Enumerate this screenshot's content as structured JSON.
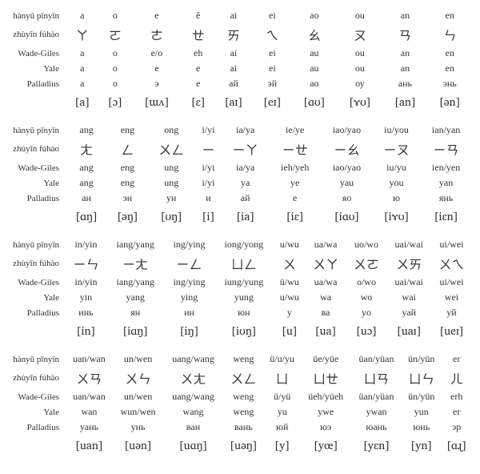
{
  "rowLabels": {
    "pinyin": "hànyǔ pīnyīn",
    "zhuyin": "zhùyīn fúhào",
    "wadegiles": "Wade-Giles",
    "yale": "Yale",
    "palladius": "Palladius"
  },
  "blocks": [
    {
      "cols": 10,
      "pinyin": [
        "a",
        "o",
        "e",
        "ê",
        "ai",
        "ei",
        "ao",
        "ou",
        "an",
        "en"
      ],
      "zhuyin": [
        "ㄚ",
        "ㄛ",
        "ㄜ",
        "ㄝ",
        "ㄞ",
        "ㄟ",
        "ㄠ",
        "ㄡ",
        "ㄢ",
        "ㄣ"
      ],
      "wadegiles": [
        "a",
        "o",
        "e/o",
        "eh",
        "ai",
        "ei",
        "au",
        "ou",
        "an",
        "en"
      ],
      "yale": [
        "a",
        "o",
        "e",
        "e",
        "ai",
        "ei",
        "au",
        "ou",
        "an",
        "en"
      ],
      "palladius": [
        "а",
        "о",
        "э",
        "е",
        "ай",
        "эй",
        "ао",
        "оу",
        "ань",
        "энь"
      ],
      "ipa": [
        "[a]",
        "[ɔ]",
        "[ɯʌ]",
        "[ɛ]",
        "[aɪ]",
        "[eɪ]",
        "[ɑʊ]",
        "[ɤʊ]",
        "[an]",
        "[ən]"
      ]
    },
    {
      "cols": 9,
      "pinyin": [
        "ang",
        "eng",
        "ong",
        "i/yi",
        "ia/ya",
        "ie/ye",
        "iao/yao",
        "iu/you",
        "ian/yan"
      ],
      "zhuyin": [
        "ㄤ",
        "ㄥ",
        "ㄨㄥ",
        "ㄧ",
        "ㄧㄚ",
        "ㄧㄝ",
        "ㄧㄠ",
        "ㄧㄡ",
        "ㄧㄢ"
      ],
      "wadegiles": [
        "ang",
        "eng",
        "ung",
        "i/yi",
        "ia/ya",
        "ieh/yeh",
        "iao/yao",
        "iu/yu",
        "ien/yen"
      ],
      "yale": [
        "ang",
        "eng",
        "ung",
        "i/yi",
        "ya",
        "ye",
        "yau",
        "you",
        "yan"
      ],
      "palladius": [
        "ан",
        "эн",
        "ун",
        "и",
        "ай",
        "е",
        "яо",
        "ю",
        "янь"
      ],
      "ipa": [
        "[ɑŋ]",
        "[əŋ]",
        "[ʊŋ]",
        "[i]",
        "[ia]",
        "[iɛ]",
        "[iɑʊ]",
        "[iɤʊ]",
        "[iɛn]"
      ]
    },
    {
      "cols": 9,
      "pinyin": [
        "in/yin",
        "iang/yang",
        "ing/ying",
        "iong/yong",
        "u/wu",
        "ua/wa",
        "uo/wo",
        "uai/wai",
        "ui/wei"
      ],
      "zhuyin": [
        "ㄧㄣ",
        "ㄧㄤ",
        "ㄧㄥ",
        "ㄩㄥ",
        "ㄨ",
        "ㄨㄚ",
        "ㄨㄛ",
        "ㄨㄞ",
        "ㄨㄟ"
      ],
      "wadegiles": [
        "in/yin",
        "iang/yang",
        "ing/ying",
        "iung/yung",
        "ü/wu",
        "ua/wa",
        "o/wo",
        "uai/wai",
        "ui/wei"
      ],
      "yale": [
        "yin",
        "yang",
        "ying",
        "yung",
        "u/wu",
        "wa",
        "wo",
        "wai",
        "wei"
      ],
      "palladius": [
        "инь",
        "ян",
        "ин",
        "юн",
        "у",
        "ва",
        "yo",
        "уай",
        "уй"
      ],
      "ipa": [
        "[in]",
        "[iɑŋ]",
        "[iŋ]",
        "[iʊŋ]",
        "[u]",
        "[ua]",
        "[uɔ]",
        "[uaɪ]",
        "[ueɪ]"
      ]
    },
    {
      "cols": 9,
      "pinyin": [
        "uan/wan",
        "un/wen",
        "uang/wang",
        "weng",
        "ü/u/yu",
        "üe/yüe",
        "üan/yüan",
        "ün/yün",
        "er"
      ],
      "zhuyin": [
        "ㄨㄢ",
        "ㄨㄣ",
        "ㄨㄤ",
        "ㄨㄥ",
        "ㄩ",
        "ㄩㄝ",
        "ㄩㄢ",
        "ㄩㄣ",
        "ㄦ"
      ],
      "wadegiles": [
        "uan/wan",
        "un/wen",
        "uang/wang",
        "weng",
        "ü/yü",
        "üeh/yüeh",
        "üan/yüan",
        "ün/yün",
        "erh"
      ],
      "yale": [
        "wan",
        "wun/wen",
        "wang",
        "weng",
        "yu",
        "ywe",
        "ywan",
        "yun",
        "er"
      ],
      "palladius": [
        "уань",
        "унь",
        "ван",
        "вань",
        "юй",
        "юэ",
        "юань",
        "юнь",
        "эр"
      ],
      "ipa": [
        "[uan]",
        "[uən]",
        "[uɑŋ]",
        "[uəŋ]",
        "[y]",
        "[yœ]",
        "[yɛn]",
        "[yn]",
        "[ɑɻ]"
      ]
    }
  ]
}
